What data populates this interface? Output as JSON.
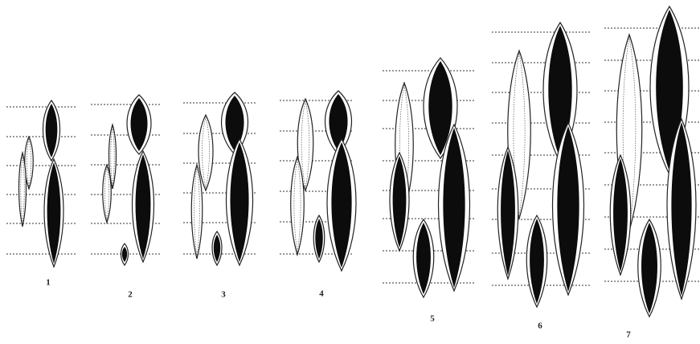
{
  "panels": [
    {
      "label": "1"
    },
    {
      "label": "2"
    },
    {
      "label": "3"
    },
    {
      "label": "4"
    },
    {
      "label": "5"
    },
    {
      "label": "6"
    },
    {
      "label": "7"
    }
  ]
}
